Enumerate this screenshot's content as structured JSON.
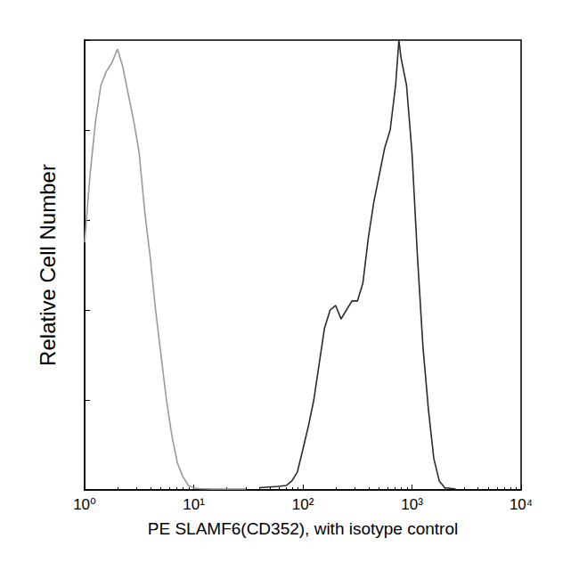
{
  "chart_data": {
    "type": "line",
    "x_label": "PE SLAMF6(CD352), with isotype control",
    "y_label": "Relative Cell Number",
    "log": "x",
    "xlim": [
      1,
      10000
    ],
    "xticks": [
      {
        "value": 1,
        "label": "10⁰"
      },
      {
        "value": 10,
        "label": "10¹"
      },
      {
        "value": 100,
        "label": "10²"
      },
      {
        "value": 1000,
        "label": "10³"
      },
      {
        "value": 10000,
        "label": "10⁴"
      }
    ],
    "ylim": [
      0,
      100
    ],
    "yticks": [
      0,
      20,
      40,
      60,
      80,
      100
    ],
    "tick_labels": "x",
    "grid": false,
    "series": [
      {
        "color": "#9a9a9a",
        "line_style": "solid",
        "x": [
          1,
          1.12,
          1.26,
          1.41,
          1.58,
          1.78,
          2,
          2.24,
          2.51,
          2.82,
          3.16,
          3.55,
          3.98,
          4.47,
          5.01,
          5.62,
          6.31,
          7.08,
          7.94,
          8.91,
          10,
          11.2,
          15,
          20,
          30
        ],
        "values": [
          55,
          70,
          82,
          90,
          93,
          95,
          98,
          94,
          88,
          82,
          75,
          62,
          52,
          40,
          30,
          20,
          12,
          6,
          3,
          1,
          0.5,
          0.3,
          0.2,
          0.2,
          0.2
        ]
      },
      {
        "color": "#2b2b2b",
        "line_style": "solid",
        "x": [
          40,
          60,
          70.8,
          79.4,
          89.1,
          100,
          112,
          126,
          141,
          158,
          178,
          200,
          224,
          251,
          282,
          316,
          355,
          398,
          447,
          501,
          562,
          631,
          708,
          759,
          794,
          891,
          1000,
          1122,
          1259,
          1413,
          1585,
          1778,
          1995,
          2512
        ],
        "values": [
          0.5,
          0.8,
          1,
          2,
          4,
          9,
          14,
          20,
          28,
          36,
          40,
          41,
          38,
          40,
          42,
          42,
          46,
          56,
          64,
          70,
          76,
          80,
          90,
          100,
          96,
          90,
          75,
          52,
          32,
          18,
          7,
          2,
          0.5,
          0.2
        ]
      }
    ]
  }
}
